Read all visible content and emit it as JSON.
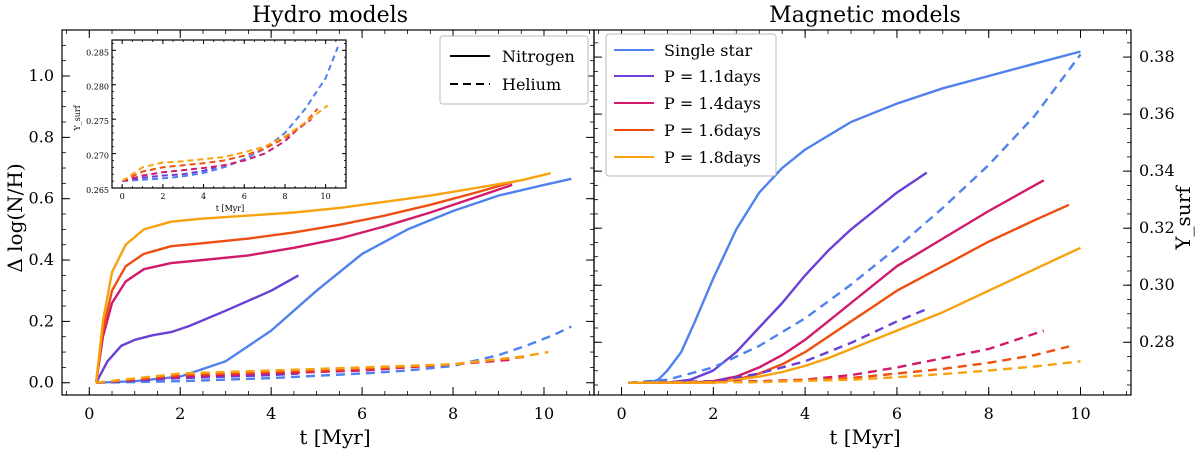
{
  "colors": {
    "single": "#4f82ee",
    "p11": "#6a3fd6",
    "p14": "#d11a6c",
    "p16": "#ee4e10",
    "p18": "#f8a20f"
  },
  "chart_data": [
    {
      "type": "line",
      "title": "Hydro models",
      "xlabel": "t [Myr]",
      "ylabel": "Δ log(N/H)",
      "xlim": [
        -0.6,
        11.1
      ],
      "ylim": [
        -0.04,
        1.15
      ],
      "xticks": [
        "0",
        "2",
        "4",
        "6",
        "8",
        "10"
      ],
      "yticks": [
        "0.0",
        "0.2",
        "0.4",
        "0.6",
        "0.8",
        "1.0"
      ],
      "legend": {
        "position": "top-right",
        "entries": [
          {
            "label": "Nitrogen",
            "style": "solid"
          },
          {
            "label": "Helium",
            "style": "dashed"
          }
        ]
      },
      "series": [
        {
          "color_key": "single",
          "style": "solid",
          "x": [
            0.15,
            1.0,
            2.0,
            3.0,
            4.0,
            5.0,
            6.0,
            7.0,
            8.0,
            9.0,
            10.0,
            10.6
          ],
          "y": [
            0.0,
            0.005,
            0.02,
            0.07,
            0.17,
            0.3,
            0.42,
            0.5,
            0.56,
            0.61,
            0.645,
            0.665
          ]
        },
        {
          "color_key": "p11",
          "style": "solid",
          "x": [
            0.15,
            0.4,
            0.7,
            1.0,
            1.4,
            1.8,
            2.2,
            3.0,
            4.0,
            4.6
          ],
          "y": [
            0.0,
            0.07,
            0.12,
            0.14,
            0.155,
            0.165,
            0.185,
            0.235,
            0.3,
            0.35
          ]
        },
        {
          "color_key": "p14",
          "style": "solid",
          "x": [
            0.15,
            0.3,
            0.5,
            0.8,
            1.2,
            1.8,
            2.5,
            3.5,
            4.5,
            5.5,
            6.5,
            7.5,
            8.5,
            9.3
          ],
          "y": [
            0.0,
            0.15,
            0.26,
            0.33,
            0.37,
            0.39,
            0.4,
            0.415,
            0.44,
            0.47,
            0.51,
            0.555,
            0.605,
            0.645
          ]
        },
        {
          "color_key": "p16",
          "style": "solid",
          "x": [
            0.15,
            0.3,
            0.5,
            0.8,
            1.2,
            1.8,
            2.5,
            3.5,
            4.5,
            5.5,
            6.5,
            7.5,
            8.5,
            9.4
          ],
          "y": [
            0.0,
            0.17,
            0.3,
            0.38,
            0.42,
            0.445,
            0.455,
            0.47,
            0.49,
            0.515,
            0.545,
            0.58,
            0.62,
            0.658
          ]
        },
        {
          "color_key": "p18",
          "style": "solid",
          "x": [
            0.15,
            0.3,
            0.5,
            0.8,
            1.2,
            1.8,
            2.5,
            3.5,
            4.5,
            5.5,
            6.5,
            7.5,
            8.5,
            9.5,
            10.15
          ],
          "y": [
            0.0,
            0.2,
            0.36,
            0.45,
            0.5,
            0.525,
            0.535,
            0.545,
            0.555,
            0.57,
            0.59,
            0.61,
            0.635,
            0.66,
            0.683
          ]
        },
        {
          "color_key": "single",
          "style": "dashed",
          "x": [
            0.15,
            2.0,
            4.0,
            6.0,
            7.0,
            8.0,
            9.0,
            9.6,
            10.2,
            10.6
          ],
          "y": [
            0.0,
            0.005,
            0.015,
            0.03,
            0.04,
            0.055,
            0.09,
            0.12,
            0.155,
            0.183
          ]
        },
        {
          "color_key": "p11",
          "style": "dashed",
          "x": [
            0.15,
            2.0,
            4.0,
            4.6
          ],
          "y": [
            0.0,
            0.015,
            0.025,
            0.03
          ]
        },
        {
          "color_key": "p14",
          "style": "dashed",
          "x": [
            0.15,
            2.0,
            4.0,
            6.0,
            8.0,
            9.3
          ],
          "y": [
            0.0,
            0.02,
            0.03,
            0.04,
            0.06,
            0.075
          ]
        },
        {
          "color_key": "p16",
          "style": "dashed",
          "x": [
            0.15,
            2.0,
            4.0,
            6.0,
            8.0,
            9.6
          ],
          "y": [
            0.0,
            0.025,
            0.035,
            0.045,
            0.06,
            0.085
          ]
        },
        {
          "color_key": "p18",
          "style": "dashed",
          "x": [
            0.15,
            2.0,
            4.0,
            6.0,
            8.0,
            9.5,
            10.1
          ],
          "y": [
            0.0,
            0.03,
            0.04,
            0.05,
            0.06,
            0.085,
            0.1
          ]
        }
      ],
      "inset": {
        "xlabel": "t [Myr]",
        "ylabel": "Y_surf",
        "xlim": [
          -0.5,
          11.0
        ],
        "ylim": [
          0.265,
          0.2865
        ],
        "xticks": [
          "0",
          "2",
          "4",
          "6",
          "8",
          "10"
        ],
        "yticks": [
          "0.265",
          "0.270",
          "0.275",
          "0.280",
          "0.285"
        ],
        "series": [
          {
            "color_key": "single",
            "style": "dashed",
            "x": [
              0.0,
              1.0,
              2.0,
              3.0,
              4.0,
              5.0,
              6.0,
              7.0,
              8.0,
              9.0,
              10.0,
              10.6
            ],
            "y": [
              0.266,
              0.2662,
              0.2664,
              0.2667,
              0.2672,
              0.268,
              0.2692,
              0.2707,
              0.273,
              0.2765,
              0.281,
              0.2855
            ]
          },
          {
            "color_key": "p11",
            "style": "dashed",
            "x": [
              0.0,
              1.0,
              2.0,
              3.0,
              4.0,
              4.6
            ],
            "y": [
              0.266,
              0.2665,
              0.2668,
              0.267,
              0.2675,
              0.268
            ]
          },
          {
            "color_key": "p14",
            "style": "dashed",
            "x": [
              0.0,
              1.0,
              2.0,
              3.0,
              4.0,
              5.0,
              6.0,
              7.0,
              8.0,
              8.6,
              9.3
            ],
            "y": [
              0.266,
              0.2668,
              0.2673,
              0.2676,
              0.2679,
              0.2683,
              0.269,
              0.27,
              0.2718,
              0.2735,
              0.275
            ]
          },
          {
            "color_key": "p16",
            "style": "dashed",
            "x": [
              0.0,
              1.0,
              2.0,
              3.0,
              4.0,
              5.0,
              6.0,
              7.0,
              8.0,
              9.0,
              9.6
            ],
            "y": [
              0.266,
              0.2674,
              0.268,
              0.2683,
              0.2686,
              0.269,
              0.2697,
              0.2707,
              0.2723,
              0.2745,
              0.2765
            ]
          },
          {
            "color_key": "p18",
            "style": "dashed",
            "x": [
              0.0,
              1.0,
              2.0,
              3.0,
              4.0,
              5.0,
              6.0,
              7.0,
              8.0,
              9.0,
              10.1
            ],
            "y": [
              0.266,
              0.268,
              0.2687,
              0.2689,
              0.2692,
              0.2695,
              0.2702,
              0.271,
              0.2725,
              0.2745,
              0.277
            ]
          }
        ]
      }
    },
    {
      "type": "line",
      "title": "Magnetic models",
      "xlabel": "t [Myr]",
      "ylabel_right": "Y_surf",
      "xlim": [
        -0.6,
        11.1
      ],
      "ylim": [
        -0.04,
        1.15
      ],
      "y2lim": [
        0.2615,
        0.3895
      ],
      "xticks": [
        "0",
        "2",
        "4",
        "6",
        "8",
        "10"
      ],
      "y2ticks": [
        "0.28",
        "0.30",
        "0.32",
        "0.34",
        "0.36",
        "0.38"
      ],
      "legend": {
        "position": "top-left",
        "entries": [
          {
            "label": "Single star",
            "color_key": "single"
          },
          {
            "label": "P = 1.1days",
            "color_key": "p11"
          },
          {
            "label": "P = 1.4days",
            "color_key": "p14"
          },
          {
            "label": "P = 1.6days",
            "color_key": "p16"
          },
          {
            "label": "P = 1.8days",
            "color_key": "p18"
          }
        ]
      },
      "series": [
        {
          "color_key": "single",
          "style": "solid",
          "x": [
            0.15,
            0.6,
            0.8,
            1.0,
            1.3,
            1.6,
            2.0,
            2.5,
            3.0,
            3.5,
            4.0,
            5.0,
            6.0,
            7.0,
            8.0,
            9.0,
            10.0
          ],
          "y": [
            0.0,
            0.0,
            0.01,
            0.04,
            0.1,
            0.2,
            0.34,
            0.5,
            0.62,
            0.7,
            0.76,
            0.85,
            0.91,
            0.96,
            1.0,
            1.04,
            1.08
          ]
        },
        {
          "color_key": "p11",
          "style": "solid",
          "x": [
            0.15,
            1.0,
            1.5,
            2.0,
            2.5,
            3.0,
            3.5,
            4.0,
            4.5,
            5.0,
            5.5,
            6.0,
            6.65
          ],
          "y": [
            0.0,
            0.0,
            0.01,
            0.04,
            0.1,
            0.18,
            0.26,
            0.35,
            0.43,
            0.5,
            0.56,
            0.62,
            0.685
          ]
        },
        {
          "color_key": "p14",
          "style": "solid",
          "x": [
            0.15,
            1.5,
            2.0,
            2.5,
            3.0,
            3.5,
            4.0,
            4.5,
            5.0,
            5.5,
            6.0,
            7.0,
            8.0,
            9.2
          ],
          "y": [
            0.0,
            0.0,
            0.005,
            0.02,
            0.05,
            0.09,
            0.14,
            0.2,
            0.26,
            0.32,
            0.38,
            0.47,
            0.56,
            0.66
          ]
        },
        {
          "color_key": "p16",
          "style": "solid",
          "x": [
            0.15,
            2.0,
            2.5,
            3.0,
            3.5,
            4.0,
            4.5,
            5.0,
            5.5,
            6.0,
            7.0,
            8.0,
            9.0,
            9.75
          ],
          "y": [
            0.0,
            0.0,
            0.01,
            0.03,
            0.06,
            0.1,
            0.15,
            0.2,
            0.25,
            0.3,
            0.38,
            0.46,
            0.53,
            0.58
          ]
        },
        {
          "color_key": "p18",
          "style": "solid",
          "x": [
            0.15,
            2.0,
            2.5,
            3.0,
            3.5,
            4.0,
            4.5,
            5.0,
            5.5,
            6.0,
            6.5,
            7.0,
            8.0,
            9.0,
            10.0
          ],
          "y": [
            0.0,
            0.0,
            0.01,
            0.02,
            0.035,
            0.055,
            0.08,
            0.11,
            0.14,
            0.17,
            0.2,
            0.23,
            0.3,
            0.37,
            0.44
          ]
        },
        {
          "color_key": "single",
          "style": "dashed",
          "x": [
            0.15,
            1.0,
            2.0,
            3.0,
            4.0,
            5.0,
            6.0,
            7.0,
            8.0,
            9.0,
            10.0
          ],
          "y": [
            0.0,
            0.01,
            0.05,
            0.12,
            0.21,
            0.32,
            0.44,
            0.57,
            0.71,
            0.87,
            1.07
          ]
        },
        {
          "color_key": "p11",
          "style": "dashed",
          "x": [
            0.15,
            2.0,
            3.0,
            4.0,
            5.0,
            6.0,
            6.65
          ],
          "y": [
            0.0,
            0.005,
            0.03,
            0.07,
            0.13,
            0.2,
            0.24
          ]
        },
        {
          "color_key": "p14",
          "style": "dashed",
          "x": [
            0.15,
            3.0,
            4.0,
            5.0,
            6.0,
            7.0,
            8.0,
            9.2
          ],
          "y": [
            0.0,
            0.005,
            0.01,
            0.025,
            0.05,
            0.08,
            0.11,
            0.17
          ]
        },
        {
          "color_key": "p16",
          "style": "dashed",
          "x": [
            0.15,
            3.0,
            5.0,
            6.0,
            7.0,
            8.0,
            9.0,
            9.75
          ],
          "y": [
            0.0,
            0.003,
            0.015,
            0.03,
            0.045,
            0.065,
            0.09,
            0.118
          ]
        },
        {
          "color_key": "p18",
          "style": "dashed",
          "x": [
            0.15,
            3.0,
            5.0,
            6.0,
            7.0,
            8.0,
            9.0,
            10.0
          ],
          "y": [
            0.0,
            0.002,
            0.01,
            0.018,
            0.028,
            0.04,
            0.053,
            0.07
          ]
        }
      ]
    }
  ]
}
